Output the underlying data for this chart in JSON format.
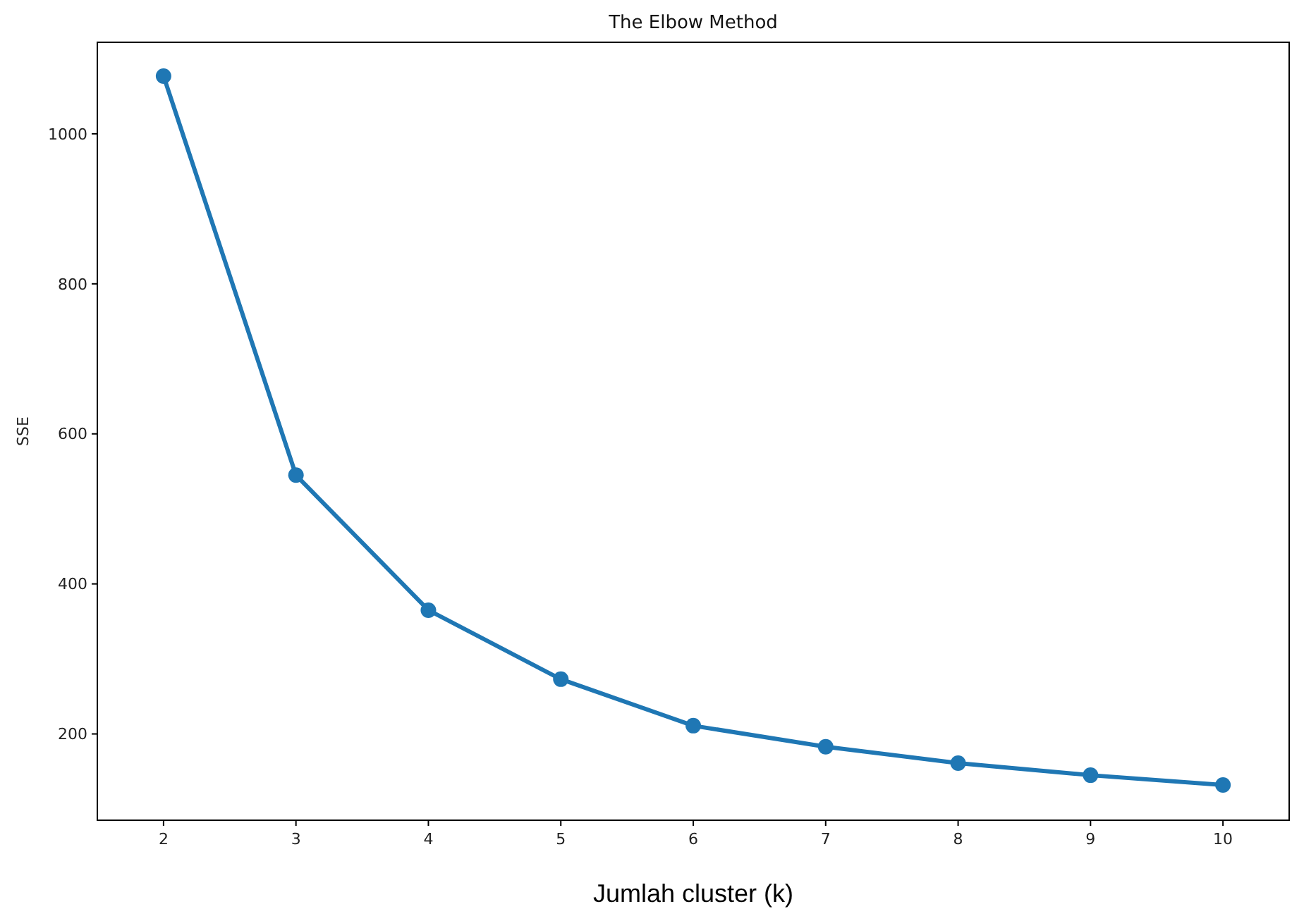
{
  "chart_data": {
    "type": "line",
    "title": "The Elbow Method",
    "xlabel": "Jumlah cluster (k)",
    "ylabel": "SSE",
    "categories": [
      "2",
      "3",
      "4",
      "5",
      "6",
      "7",
      "8",
      "9",
      "10"
    ],
    "series": [
      {
        "color": "#1f77b4",
        "values": [
          1077,
          545,
          365,
          273,
          211,
          183,
          161,
          145,
          132
        ]
      }
    ],
    "ylim": [
      85,
      1122
    ],
    "yticks": [
      200,
      400,
      600,
      800,
      1000
    ],
    "grid": false,
    "marker": "circle",
    "line_style": "solid"
  }
}
